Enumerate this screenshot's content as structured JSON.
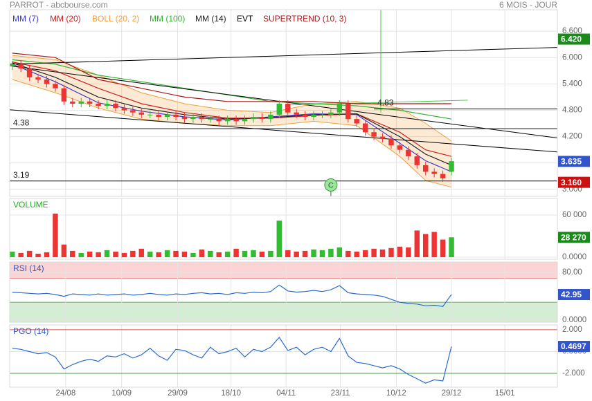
{
  "chart_data": [
    {
      "type": "candlestick",
      "title": "PARROT - abcbourse.com",
      "subtitle": "6 MOIS - JOUR",
      "x": [
        0,
        1,
        2,
        3,
        4,
        5,
        6,
        7,
        8,
        9,
        10,
        11,
        12,
        13,
        14,
        15,
        16,
        17,
        18,
        19,
        20,
        21,
        22,
        23,
        24,
        25,
        26,
        27,
        28,
        29,
        30,
        31,
        32,
        33,
        34,
        35,
        36,
        37,
        38,
        39,
        40,
        41,
        42,
        43,
        44,
        45,
        46,
        47,
        48,
        49,
        50,
        51
      ],
      "open": [
        5.8,
        5.85,
        5.75,
        5.55,
        5.5,
        5.4,
        5.3,
        5.0,
        4.95,
        5.0,
        4.95,
        4.9,
        4.95,
        4.85,
        4.8,
        4.75,
        4.7,
        4.7,
        4.65,
        4.7,
        4.65,
        4.6,
        4.65,
        4.6,
        4.6,
        4.55,
        4.6,
        4.55,
        4.6,
        4.65,
        4.6,
        4.7,
        4.95,
        4.75,
        4.7,
        4.65,
        4.7,
        4.7,
        4.75,
        4.95,
        4.6,
        4.5,
        4.3,
        4.2,
        4.15,
        4.0,
        3.9,
        3.75,
        3.55,
        3.4,
        3.35,
        3.4
      ],
      "high": [
        5.93,
        5.93,
        5.83,
        5.63,
        5.58,
        5.48,
        5.38,
        5.08,
        5.08,
        5.08,
        5.03,
        5.03,
        5.03,
        4.93,
        4.88,
        4.83,
        4.78,
        4.78,
        4.78,
        4.78,
        4.73,
        4.73,
        4.73,
        4.68,
        4.68,
        4.68,
        4.68,
        4.68,
        4.73,
        4.73,
        4.78,
        5.03,
        5.03,
        4.83,
        4.78,
        4.78,
        4.78,
        4.83,
        5.03,
        5.03,
        4.68,
        4.58,
        4.38,
        4.28,
        4.23,
        4.08,
        3.98,
        3.83,
        3.63,
        3.48,
        3.43,
        3.72
      ],
      "low": [
        5.72,
        5.67,
        5.47,
        5.42,
        5.32,
        5.22,
        4.92,
        4.87,
        4.87,
        4.87,
        4.82,
        4.82,
        4.77,
        4.72,
        4.67,
        4.62,
        4.62,
        4.57,
        4.57,
        4.57,
        4.52,
        4.52,
        4.52,
        4.52,
        4.47,
        4.47,
        4.47,
        4.47,
        4.52,
        4.52,
        4.52,
        4.62,
        4.67,
        4.62,
        4.57,
        4.57,
        4.62,
        4.62,
        4.67,
        4.52,
        4.42,
        4.22,
        4.12,
        4.07,
        3.92,
        3.82,
        3.67,
        3.47,
        3.32,
        3.27,
        3.17,
        3.32
      ],
      "close": [
        5.85,
        5.75,
        5.55,
        5.5,
        5.4,
        5.3,
        5.0,
        4.95,
        5.0,
        4.95,
        4.9,
        4.95,
        4.85,
        4.8,
        4.75,
        4.7,
        4.7,
        4.65,
        4.7,
        4.65,
        4.6,
        4.65,
        4.6,
        4.6,
        4.55,
        4.6,
        4.55,
        4.6,
        4.65,
        4.6,
        4.7,
        4.95,
        4.75,
        4.7,
        4.65,
        4.7,
        4.7,
        4.75,
        4.95,
        4.6,
        4.5,
        4.3,
        4.2,
        4.15,
        4.0,
        3.9,
        3.75,
        3.55,
        3.4,
        3.35,
        3.25,
        3.64
      ],
      "up_color": "#33bb33",
      "down_color": "#ee3333",
      "xlim": [
        -0.3,
        63.3
      ],
      "xticks": [
        {
          "value": 6.2,
          "label": "24/08"
        },
        {
          "value": 12.7,
          "label": "10/09"
        },
        {
          "value": 19.2,
          "label": "29/09"
        },
        {
          "value": 25.4,
          "label": "18/10"
        },
        {
          "value": 31.8,
          "label": "04/11"
        },
        {
          "value": 38.1,
          "label": "23/11"
        },
        {
          "value": 44.6,
          "label": "10/12"
        },
        {
          "value": 51,
          "label": "29/12"
        },
        {
          "value": 57.2,
          "label": "15/01"
        }
      ],
      "ylim": [
        2.84,
        7.09
      ],
      "yticks": [
        {
          "value": 3.0,
          "label": "3.000"
        },
        {
          "value": 3.6,
          "label": "3.600"
        },
        {
          "value": 4.2,
          "label": "4.200"
        },
        {
          "value": 4.8,
          "label": "4.800"
        },
        {
          "value": 5.4,
          "label": "5.400"
        },
        {
          "value": 6.0,
          "label": "6.000"
        },
        {
          "value": 6.6,
          "label": "6.600"
        }
      ],
      "grid": true,
      "series": [
        {
          "name": "MM (7)",
          "color": "#3b3bd0",
          "x": [
            0,
            5,
            10,
            15,
            20,
            25,
            30,
            35,
            40,
            45,
            48,
            51
          ],
          "values": [
            5.85,
            5.45,
            4.97,
            4.78,
            4.65,
            4.58,
            4.65,
            4.72,
            4.7,
            4.05,
            3.65,
            3.4
          ]
        },
        {
          "name": "MM (20)",
          "color": "#d02020",
          "x": [
            0,
            5,
            10,
            15,
            20,
            25,
            30,
            35,
            40,
            45,
            48,
            51
          ],
          "values": [
            5.9,
            5.7,
            5.3,
            4.95,
            4.75,
            4.62,
            4.62,
            4.68,
            4.72,
            4.3,
            3.9,
            3.75
          ]
        },
        {
          "name": "BOLL (20, 2)",
          "color": "#f0a040",
          "x": [
            0,
            5,
            10,
            15,
            20,
            25,
            30,
            35,
            40,
            45,
            48,
            51
          ],
          "upper": [
            6.05,
            5.95,
            5.6,
            5.2,
            4.95,
            4.8,
            4.75,
            4.95,
            5.0,
            4.85,
            4.5,
            4.1
          ],
          "lower": [
            5.5,
            5.2,
            4.85,
            4.6,
            4.5,
            4.45,
            4.45,
            4.55,
            4.45,
            3.75,
            3.2,
            3.05
          ]
        },
        {
          "name": "MM (100)",
          "color": "#30b030",
          "x": [
            0,
            5,
            10,
            15,
            20,
            25,
            30,
            35,
            40,
            45,
            48,
            51
          ],
          "values": [
            5.95,
            5.85,
            5.6,
            5.45,
            5.3,
            5.15,
            5.0,
            4.95,
            4.9,
            4.8,
            4.7,
            4.6
          ]
        },
        {
          "name": "MM (14)",
          "color": "#222222",
          "x": [
            0,
            5,
            10,
            15,
            20,
            25,
            30,
            35,
            40,
            45,
            48,
            51
          ],
          "values": [
            5.88,
            5.55,
            5.1,
            4.85,
            4.7,
            4.6,
            4.63,
            4.7,
            4.72,
            4.2,
            3.8,
            3.55
          ]
        },
        {
          "name": "EVT",
          "color": "#000000",
          "lines": [
            {
              "x": [
                -0.3,
                63.3
              ],
              "values": [
                5.85,
                6.23
              ],
              "color": "#000000"
            },
            {
              "x": [
                -0.3,
                63.3
              ],
              "values": [
                5.81,
                4.17
              ],
              "color": "#000000"
            },
            {
              "x": [
                -0.3,
                63.3
              ],
              "values": [
                4.81,
                3.85
              ],
              "color": "#000000"
            },
            {
              "x": [
                31.9,
                52.9
              ],
              "values": [
                4.92,
                5.03
              ],
              "color": "#44cc44"
            },
            {
              "x": [
                42.8,
                42.8
              ],
              "values": [
                7.09,
                4.75
              ],
              "color": "#44cc44"
            }
          ]
        },
        {
          "name": "SUPERTREND (10, 3)",
          "color": "#aa1515",
          "x": [
            0,
            5,
            10,
            15,
            20,
            25,
            30,
            35,
            40,
            45,
            48,
            51
          ],
          "values": [
            6.1,
            6.0,
            5.5,
            5.3,
            5.1,
            5.0,
            5.0,
            5.0,
            4.95,
            4.95,
            4.95,
            4.95
          ]
        }
      ],
      "levels": [
        {
          "value": 4.38,
          "label": "4.38",
          "x": -0.3
        },
        {
          "value": 3.19,
          "label": "3.19",
          "x": -0.3
        },
        {
          "value": 4.83,
          "label": "4.83",
          "x": 42
        }
      ],
      "annotations": [
        {
          "x": 37,
          "value": 3.1,
          "label": "C"
        }
      ],
      "price_tags": [
        {
          "value": 6.42,
          "label": "6.420",
          "color": "#1a8a1a"
        },
        {
          "value": 3.635,
          "label": "3.635",
          "color": "#3355cc"
        },
        {
          "value": 3.16,
          "label": "3.160",
          "color": "#cc1111"
        }
      ]
    },
    {
      "type": "bar",
      "title": "VOLUME",
      "title_color": "#22aa22",
      "values": [
        8000,
        6000,
        9000,
        5000,
        7000,
        62000,
        18000,
        9000,
        6000,
        8000,
        7000,
        10000,
        8000,
        6000,
        9000,
        12000,
        8000,
        7000,
        10000,
        9000,
        8000,
        6000,
        11000,
        9000,
        7000,
        8000,
        12000,
        9000,
        10000,
        8000,
        9000,
        52000,
        10000,
        8000,
        9000,
        11000,
        10000,
        12000,
        14000,
        9000,
        8000,
        10000,
        12000,
        11000,
        13000,
        15000,
        14000,
        38000,
        33000,
        36000,
        25000,
        28270
      ],
      "ylim": [
        -2950,
        83600
      ],
      "yticks": [
        {
          "value": 0,
          "label": "0.0000"
        },
        {
          "value": 60000,
          "label": "60 000"
        }
      ],
      "value_tag": {
        "value": 28270,
        "label": "28 270",
        "color": "#1a8a1a"
      }
    },
    {
      "type": "line",
      "title": "RSI (14)",
      "title_color": "#3355bb",
      "color": "#2a6ad0",
      "values": [
        47,
        46,
        45,
        44,
        45,
        43,
        40,
        44,
        43,
        42,
        44,
        42,
        43,
        44,
        42,
        43,
        45,
        43,
        42,
        44,
        43,
        45,
        46,
        44,
        45,
        43,
        46,
        45,
        47,
        46,
        48,
        59,
        49,
        47,
        48,
        50,
        48,
        51,
        58,
        46,
        44,
        43,
        42,
        40,
        35,
        30,
        28,
        27,
        24,
        25,
        23,
        42.95
      ],
      "ylim": [
        -3.5,
        97.6
      ],
      "yticks": [
        {
          "value": 0,
          "label": "0.0000"
        },
        {
          "value": 80,
          "label": "80.00"
        }
      ],
      "zones": [
        {
          "above": 70,
          "color": "#fbd5d5",
          "line": "#e08080"
        },
        {
          "below": 30,
          "color": "#d5ecd5",
          "line": "#60b060"
        }
      ],
      "value_tag": {
        "value": 42.95,
        "label": "42.95",
        "color": "#3355cc"
      }
    },
    {
      "type": "line",
      "title": "PGO (14)",
      "title_color": "#3355bb",
      "color": "#2a6ad0",
      "values": [
        0.3,
        0.2,
        0.0,
        -0.2,
        -0.1,
        -0.5,
        -1.6,
        -1.2,
        -0.9,
        -0.7,
        -0.9,
        -0.4,
        -0.5,
        -0.2,
        -0.6,
        -0.3,
        0.3,
        -0.4,
        -0.8,
        0.2,
        0.1,
        -0.3,
        -0.6,
        0.4,
        -0.2,
        0.0,
        0.3,
        -0.5,
        0.2,
        0.0,
        0.4,
        1.3,
        0.1,
        0.4,
        -0.3,
        0.2,
        0.4,
        0.0,
        1.2,
        -0.4,
        -1.0,
        -1.1,
        -1.3,
        -1.5,
        -1.3,
        -1.6,
        -2.1,
        -2.5,
        -2.9,
        -2.6,
        -2.7,
        0.4697
      ],
      "ylim": [
        -3.27,
        2.44
      ],
      "yticks": [
        {
          "value": -2,
          "label": "-2.000"
        },
        {
          "value": 0,
          "label": "0.0000"
        },
        {
          "value": 2,
          "label": "2.000"
        }
      ],
      "levels": [
        {
          "value": 2,
          "color": "#e05050"
        },
        {
          "value": -2,
          "color": "#40a040"
        }
      ],
      "value_tag": {
        "value": 0.4697,
        "label": "0.4697",
        "color": "#3355cc"
      }
    }
  ]
}
